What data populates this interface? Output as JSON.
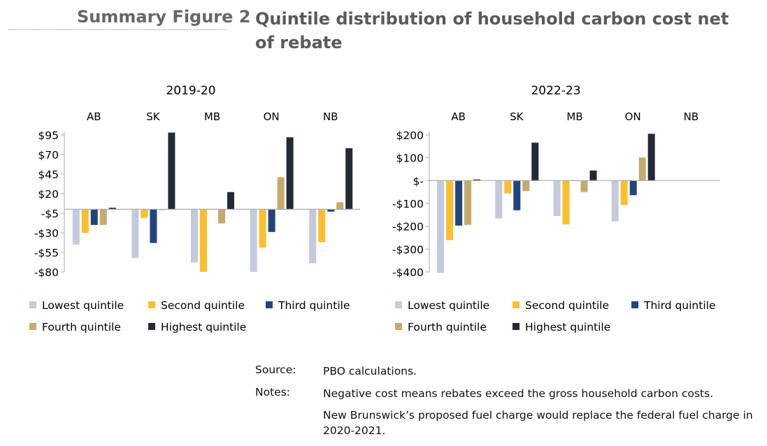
{
  "header": {
    "figure_label": "Summary Figure 2",
    "title": "Quintile distribution of household carbon cost net of rebate"
  },
  "colors": {
    "Lowest quintile": "#c4cadc",
    "Second quintile": "#fbbf2d",
    "Third quintile": "#1f4580",
    "Fourth quintile": "#c4aa6c",
    "Highest quintile": "#232a35"
  },
  "chart_data": [
    {
      "type": "bar",
      "title": "2019-20",
      "categories": [
        "AB",
        "SK",
        "MB",
        "ON",
        "NB"
      ],
      "ylim": [
        -80,
        95
      ],
      "yticks": [
        95,
        70,
        45,
        20,
        -5,
        -30,
        -55,
        -80
      ],
      "ytick_labels": [
        "$95",
        "$70",
        "$45",
        "$20",
        "-$5",
        "-$30",
        "-$55",
        "-$80"
      ],
      "legend": "bottom",
      "grid": false,
      "series": [
        {
          "name": "Lowest quintile",
          "values": [
            -45,
            -62,
            -68,
            -80,
            -69
          ]
        },
        {
          "name": "Second quintile",
          "values": [
            -30,
            -11,
            -80,
            -49,
            -42
          ]
        },
        {
          "name": "Third quintile",
          "values": [
            -20,
            -43,
            0,
            -29,
            -3
          ]
        },
        {
          "name": "Fourth quintile",
          "values": [
            -20,
            -1,
            -18,
            41,
            9
          ]
        },
        {
          "name": "Highest quintile",
          "values": [
            2,
            98,
            22,
            92,
            78
          ]
        }
      ]
    },
    {
      "type": "bar",
      "title": "2022-23",
      "categories": [
        "AB",
        "SK",
        "MB",
        "ON",
        "NB"
      ],
      "ylim": [
        -400,
        200
      ],
      "yticks": [
        200,
        100,
        0,
        -100,
        -200,
        -300,
        -400
      ],
      "ytick_labels": [
        "$200",
        "$100",
        "$-",
        "-$100",
        "-$200",
        "-$300",
        "-$400"
      ],
      "legend": "bottom",
      "grid": false,
      "series": [
        {
          "name": "Lowest quintile",
          "values": [
            -404,
            -166,
            -155,
            -179,
            null
          ]
        },
        {
          "name": "Second quintile",
          "values": [
            -261,
            -56,
            -192,
            -107,
            null
          ]
        },
        {
          "name": "Third quintile",
          "values": [
            -197,
            -130,
            -2,
            -64,
            null
          ]
        },
        {
          "name": "Fourth quintile",
          "values": [
            -194,
            -46,
            -50,
            101,
            null
          ]
        },
        {
          "name": "Highest quintile",
          "values": [
            5,
            166,
            44,
            205,
            null
          ]
        }
      ]
    }
  ],
  "notes": {
    "source_label": "Source:",
    "source_text": "PBO calculations.",
    "notes_label": "Notes:",
    "note1": "Negative cost means rebates exceed the gross household carbon costs.",
    "note2": "New Brunswick’s proposed fuel charge would replace the federal fuel charge in 2020-2021."
  }
}
